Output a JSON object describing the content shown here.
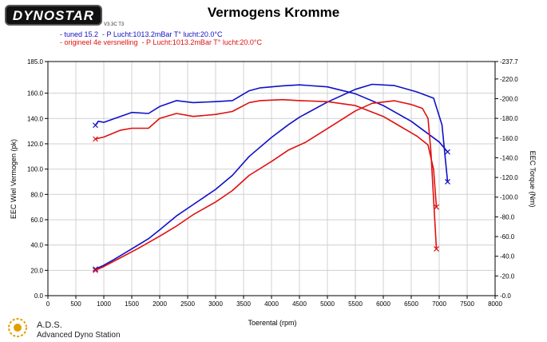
{
  "header": {
    "logo_text": "DYNOSTAR",
    "logo_subtext": "V3.3C T3",
    "title": "Vermogens Kromme"
  },
  "legend": [
    {
      "text": "- tuned 15.2  - P Lucht:1013.2mBar T° lucht:20.0°C",
      "color": "#1010c8"
    },
    {
      "text": "- origineel 4e versnelling  - P Lucht:1013.2mBar T° lucht:20.0°C",
      "color": "#e01010"
    }
  ],
  "footer": {
    "name": "A.D.S.",
    "subtitle": "Advanced Dyno Station"
  },
  "colors": {
    "tuned": "#1010c8",
    "original": "#e01010",
    "grid": "#d0d0d0"
  },
  "chart_data": {
    "type": "line",
    "title": "Vermogens Kromme",
    "xlabel": "Toerental (rpm)",
    "ylabel_left": "EEC Wiel Vermogen (pk)",
    "ylabel_right": "EEC Torque (Nm)",
    "xlim": [
      0,
      8000
    ],
    "ylim_left": [
      0,
      185
    ],
    "ylim_right": [
      0,
      237.7
    ],
    "grid": true,
    "x_ticks": [
      "0",
      "500",
      "1000",
      "1500",
      "2000",
      "2500",
      "3000",
      "3500",
      "4000",
      "4500",
      "5000",
      "5500",
      "6000",
      "6500",
      "7000",
      "7500",
      "8000"
    ],
    "y_left_ticks": [
      "0.0",
      "20.0",
      "40.0",
      "60.0",
      "80.0",
      "100.0",
      "120.0",
      "140.0",
      "160.0",
      "185.0"
    ],
    "y_left_tick_values": [
      0,
      20,
      40,
      60,
      80,
      100,
      120,
      140,
      160,
      185
    ],
    "y_right_ticks": [
      "0.0",
      "20.0",
      "40.0",
      "60.0",
      "80.0",
      "100.0",
      "120.0",
      "140.0",
      "160.0",
      "180.0",
      "200.0",
      "220.0",
      "237.7"
    ],
    "y_right_tick_values": [
      0,
      20,
      40,
      60,
      80,
      100,
      120,
      140,
      160,
      180,
      200,
      220,
      237.7
    ],
    "series": [
      {
        "name": "tuned 15.2",
        "quantity": "power",
        "axis": "left",
        "color": "#1010c8",
        "x": [
          850,
          1000,
          1200,
          1500,
          1800,
          2000,
          2300,
          2600,
          3000,
          3300,
          3600,
          4000,
          4300,
          4500,
          5000,
          5500,
          5800,
          6200,
          6600,
          6900,
          7050,
          7150
        ],
        "y": [
          21,
          24,
          29,
          37,
          45,
          52,
          63,
          72,
          84,
          95,
          110,
          125,
          135,
          141,
          153,
          163,
          167,
          166,
          161,
          156,
          135,
          90
        ]
      },
      {
        "name": "tuned 15.2",
        "quantity": "torque",
        "axis": "right",
        "color": "#1010c8",
        "x": [
          850,
          900,
          1000,
          1200,
          1500,
          1800,
          2000,
          2300,
          2600,
          3000,
          3300,
          3600,
          3800,
          4200,
          4500,
          5000,
          5500,
          6000,
          6500,
          7000,
          7150
        ],
        "y": [
          173,
          177,
          176,
          180,
          186,
          185,
          192,
          198,
          196,
          197,
          198,
          208,
          211,
          213,
          214,
          212,
          205,
          193,
          177,
          156,
          146
        ]
      },
      {
        "name": "origineel 4e versnelling",
        "quantity": "power",
        "axis": "left",
        "color": "#e01010",
        "x": [
          850,
          1000,
          1300,
          1600,
          2000,
          2300,
          2600,
          3000,
          3300,
          3600,
          4000,
          4300,
          4600,
          5000,
          5500,
          5800,
          6200,
          6500,
          6700,
          6800,
          6850,
          6950
        ],
        "y": [
          20,
          23,
          30,
          37,
          47,
          55,
          64,
          74,
          83,
          95,
          106,
          115,
          121,
          132,
          146,
          152,
          154,
          151,
          148,
          140,
          115,
          37
        ]
      },
      {
        "name": "origineel 4e versnelling",
        "quantity": "torque",
        "axis": "right",
        "color": "#e01010",
        "x": [
          850,
          1000,
          1300,
          1500,
          1800,
          2000,
          2300,
          2600,
          3000,
          3300,
          3600,
          3800,
          4200,
          4500,
          5000,
          5500,
          6000,
          6300,
          6600,
          6800,
          6900,
          6950
        ],
        "y": [
          159,
          161,
          168,
          170,
          170,
          180,
          185,
          182,
          184,
          187,
          196,
          198,
          199,
          198,
          197,
          193,
          182,
          172,
          162,
          153,
          128,
          90
        ]
      }
    ]
  }
}
